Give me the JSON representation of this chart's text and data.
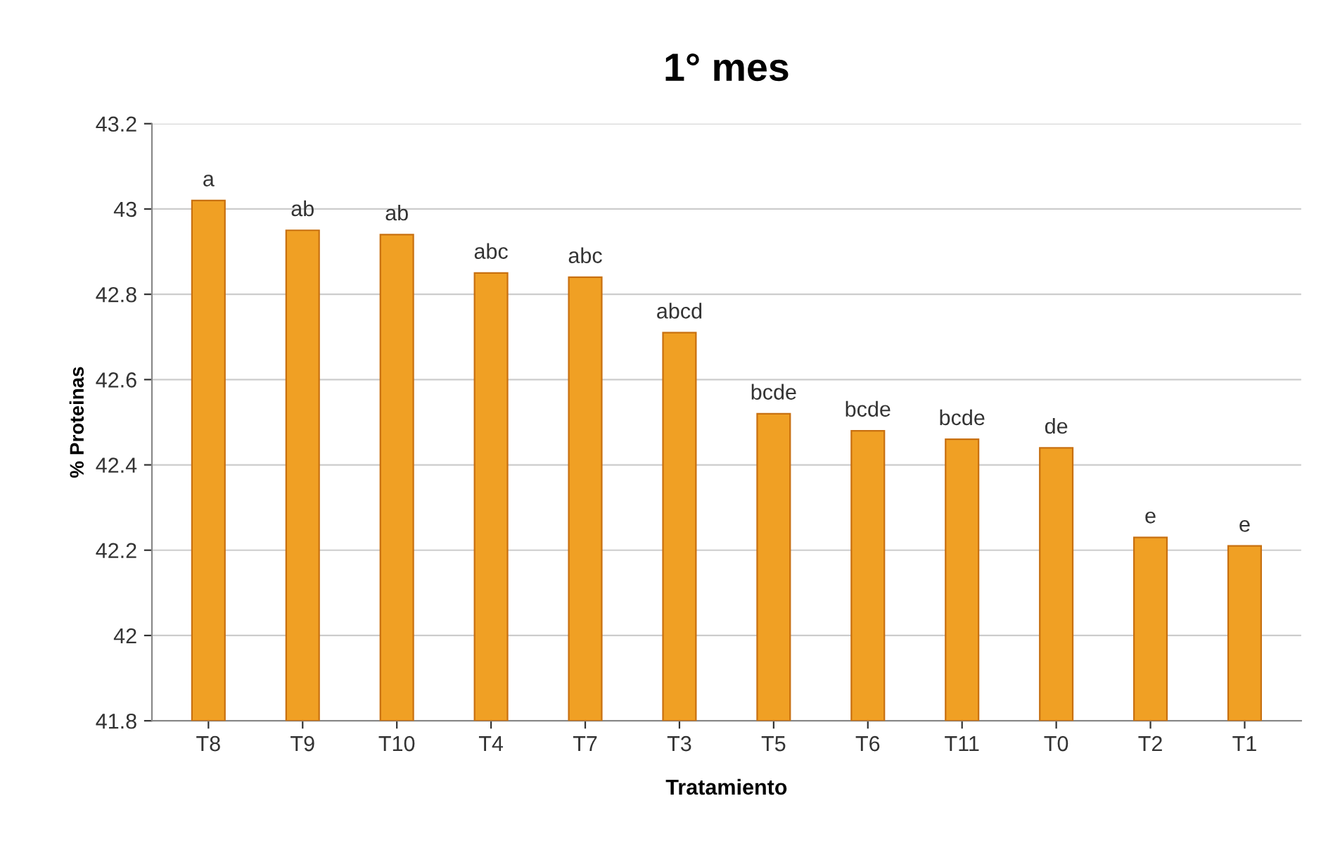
{
  "chart_data": {
    "type": "bar",
    "title": "1° mes",
    "xlabel": "Tratamiento",
    "ylabel": "% Proteinas",
    "categories": [
      "T8",
      "T9",
      "T10",
      "T4",
      "T7",
      "T3",
      "T5",
      "T6",
      "T11",
      "T0",
      "T2",
      "T1"
    ],
    "values": [
      43.02,
      42.95,
      42.94,
      42.85,
      42.84,
      42.71,
      42.52,
      42.48,
      42.46,
      42.44,
      42.23,
      42.21
    ],
    "color": "#f0a024",
    "ylim": [
      41.8,
      43.2
    ],
    "yticks": [
      41.8,
      42,
      42.2,
      42.4,
      42.6,
      42.8,
      43,
      43.2
    ],
    "grid": "y",
    "annotations": [
      {
        "text": "a",
        "x": "T8",
        "y": 43.02
      },
      {
        "text": "ab",
        "x": "T9",
        "y": 42.95
      },
      {
        "text": "ab",
        "x": "T10",
        "y": 42.94
      },
      {
        "text": "abc",
        "x": "T4",
        "y": 42.85
      },
      {
        "text": "abc",
        "x": "T7",
        "y": 42.84
      },
      {
        "text": "abcd",
        "x": "T3",
        "y": 42.71
      },
      {
        "text": "bcde",
        "x": "T5",
        "y": 42.52
      },
      {
        "text": "bcde",
        "x": "T6",
        "y": 42.48
      },
      {
        "text": "bcde",
        "x": "T11",
        "y": 42.46
      },
      {
        "text": "de",
        "x": "T0",
        "y": 42.44
      },
      {
        "text": "e",
        "x": "T2",
        "y": 42.23
      },
      {
        "text": "e",
        "x": "T1",
        "y": 42.21
      }
    ]
  }
}
